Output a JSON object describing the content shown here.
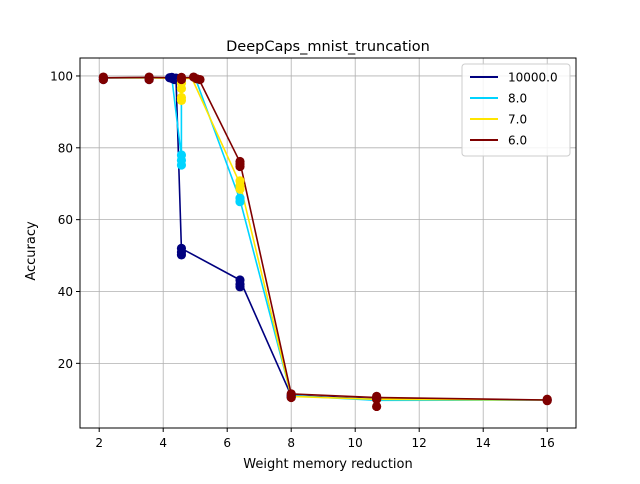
{
  "chart_data": {
    "type": "line",
    "title": "DeepCaps_mnist_truncation",
    "xlabel": "Weight memory reduction",
    "ylabel": "Accuracy",
    "xlim": [
      1.4,
      16.9
    ],
    "ylim": [
      2,
      105
    ],
    "xticks": [
      2,
      4,
      6,
      8,
      10,
      12,
      14,
      16
    ],
    "yticks": [
      20,
      40,
      60,
      80,
      100
    ],
    "grid": true,
    "legend_position": "top-right",
    "series": [
      {
        "name": "10000.0",
        "color": "#00007f",
        "line": [
          [
            2.13,
            99.5
          ],
          [
            3.56,
            99.5
          ],
          [
            4.27,
            99.5
          ],
          [
            4.4,
            99.4
          ],
          [
            4.57,
            52.0
          ],
          [
            6.4,
            43.2
          ],
          [
            8.0,
            11.0
          ],
          [
            10.67,
            10.1
          ],
          [
            16.0,
            9.8
          ]
        ],
        "points": [
          [
            2.13,
            99.5
          ],
          [
            2.13,
            99.0
          ],
          [
            3.56,
            99.5
          ],
          [
            3.56,
            99.0
          ],
          [
            4.2,
            99.5
          ],
          [
            4.27,
            99.6
          ],
          [
            4.3,
            99.2
          ],
          [
            4.35,
            99.0
          ],
          [
            4.4,
            99.4
          ],
          [
            4.57,
            52.0
          ],
          [
            4.57,
            51.0
          ],
          [
            4.57,
            50.2
          ],
          [
            6.4,
            43.2
          ],
          [
            6.4,
            42.0
          ],
          [
            6.4,
            41.3
          ],
          [
            8.0,
            11.0
          ],
          [
            8.0,
            10.6
          ],
          [
            10.67,
            10.1
          ],
          [
            16.0,
            9.8
          ]
        ]
      },
      {
        "name": "8.0",
        "color": "#00d4ff",
        "line": [
          [
            2.13,
            99.5
          ],
          [
            3.56,
            99.5
          ],
          [
            4.27,
            99.5
          ],
          [
            4.57,
            77.5
          ],
          [
            4.57,
            99.5
          ],
          [
            5.0,
            99.5
          ],
          [
            6.4,
            65.5
          ],
          [
            8.0,
            11.0
          ],
          [
            10.67,
            9.7
          ],
          [
            16.0,
            9.8
          ]
        ],
        "points": [
          [
            4.57,
            78.0
          ],
          [
            4.57,
            76.5
          ],
          [
            4.57,
            75.2
          ],
          [
            6.4,
            66.0
          ],
          [
            6.4,
            65.0
          ]
        ]
      },
      {
        "name": "7.0",
        "color": "#ffe500",
        "line": [
          [
            2.13,
            99.5
          ],
          [
            3.56,
            99.5
          ],
          [
            4.57,
            99.3
          ],
          [
            4.9,
            99.3
          ],
          [
            6.4,
            70.0
          ],
          [
            8.0,
            10.8
          ],
          [
            10.67,
            10.0
          ],
          [
            16.0,
            9.8
          ]
        ],
        "points": [
          [
            4.57,
            99.0
          ],
          [
            4.57,
            98.0
          ],
          [
            4.57,
            96.5
          ],
          [
            4.57,
            94.0
          ],
          [
            4.57,
            93.2
          ],
          [
            6.4,
            70.8
          ],
          [
            6.4,
            69.5
          ],
          [
            6.4,
            68.5
          ]
        ]
      },
      {
        "name": "6.0",
        "color": "#7f0000",
        "line": [
          [
            2.13,
            99.5
          ],
          [
            3.56,
            99.6
          ],
          [
            4.57,
            99.5
          ],
          [
            5.0,
            99.6
          ],
          [
            5.1,
            99.4
          ],
          [
            6.4,
            76.0
          ],
          [
            8.0,
            11.5
          ],
          [
            10.67,
            10.5
          ],
          [
            16.0,
            9.8
          ]
        ],
        "points": [
          [
            2.13,
            99.7
          ],
          [
            2.13,
            99.0
          ],
          [
            3.56,
            99.7
          ],
          [
            3.56,
            99.0
          ],
          [
            4.57,
            99.6
          ],
          [
            4.57,
            99.0
          ],
          [
            4.95,
            99.7
          ],
          [
            5.05,
            99.2
          ],
          [
            5.15,
            99.0
          ],
          [
            6.4,
            76.2
          ],
          [
            6.4,
            75.5
          ],
          [
            6.4,
            74.8
          ],
          [
            8.0,
            11.5
          ],
          [
            8.0,
            10.5
          ],
          [
            10.67,
            10.8
          ],
          [
            10.67,
            10.0
          ],
          [
            10.67,
            8.0
          ],
          [
            16.0,
            10.0
          ],
          [
            16.0,
            9.6
          ]
        ]
      }
    ]
  }
}
